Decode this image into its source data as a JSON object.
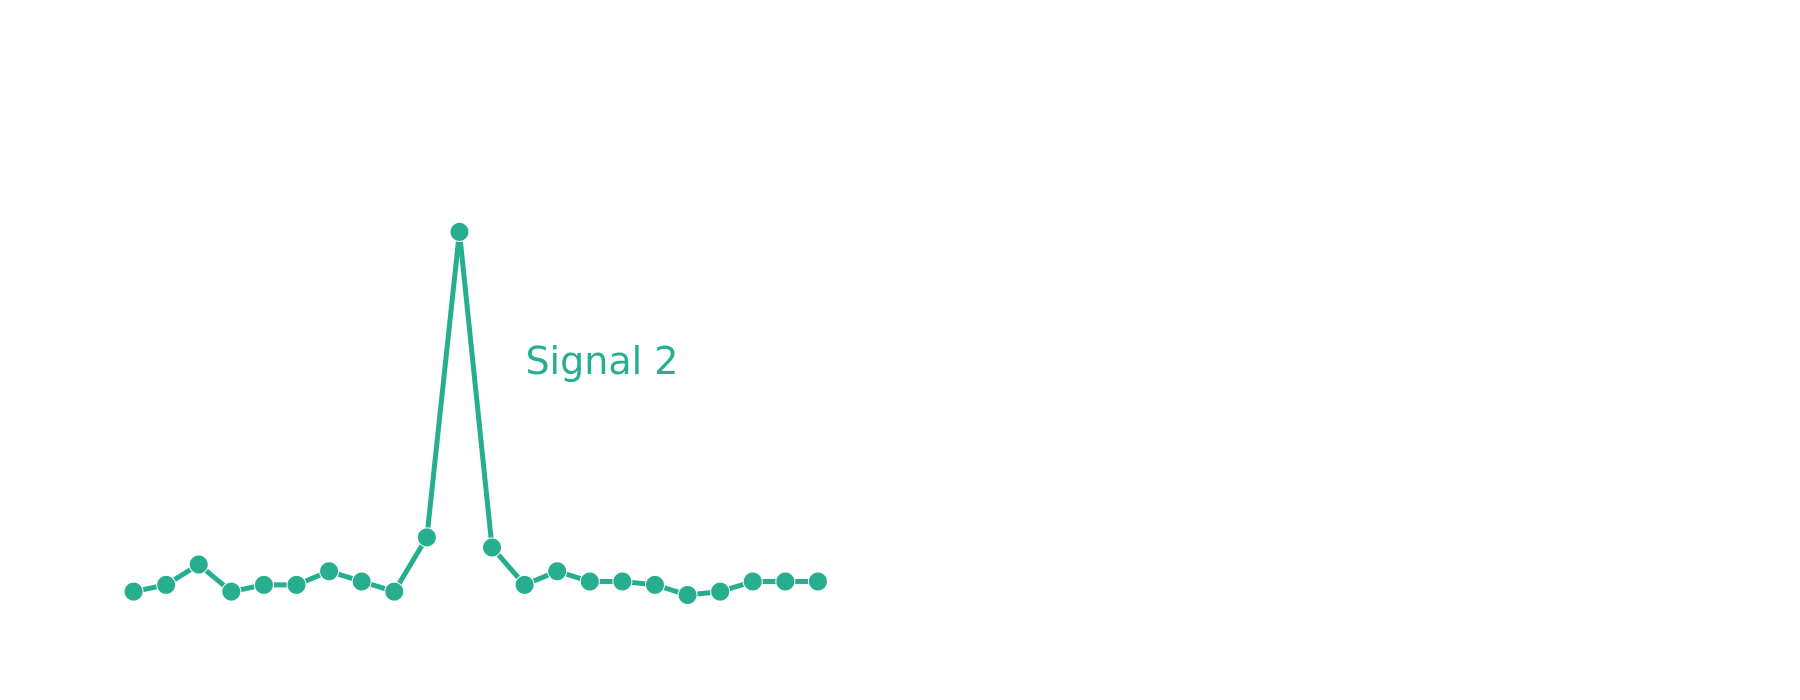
{
  "chart_data": {
    "type": "line",
    "x": [
      1,
      2,
      3,
      4,
      5,
      6,
      7,
      8,
      9,
      10,
      11,
      12,
      13,
      14,
      15,
      16,
      17,
      18,
      19,
      20,
      21,
      22
    ],
    "series": [
      {
        "name": "Signal 2",
        "values": [
          0.6,
          0.8,
          1.4,
          0.6,
          0.8,
          0.8,
          1.2,
          0.9,
          0.6,
          2.2,
          11.2,
          1.9,
          0.8,
          1.2,
          0.9,
          0.9,
          0.8,
          0.5,
          0.6,
          0.9,
          0.9,
          0.9
        ]
      }
    ],
    "xlim": [
      0.4,
      22.8
    ],
    "ylim": [
      0,
      16.5
    ],
    "grid": false,
    "legend": "none",
    "color": "#27ae8f"
  }
}
